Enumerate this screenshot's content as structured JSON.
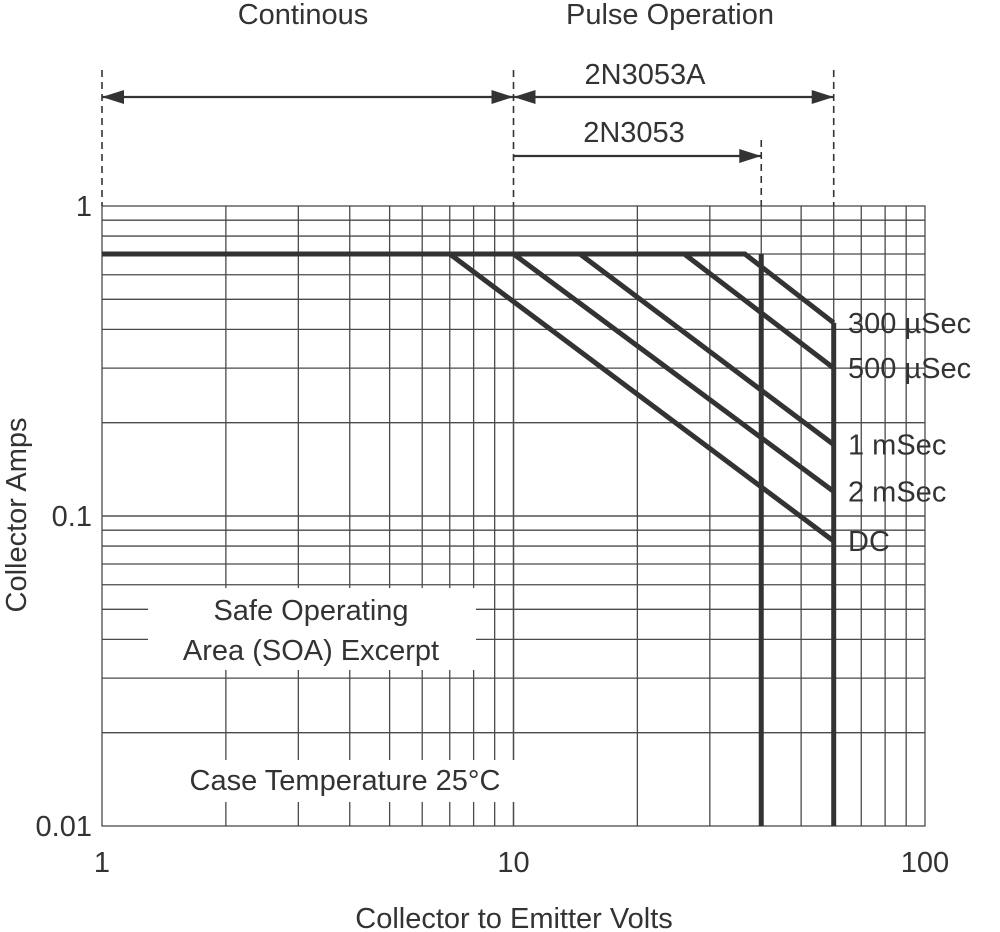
{
  "chart_data": {
    "type": "line",
    "xlabel": "Collector to Emitter Volts",
    "ylabel": "Collector Amps",
    "xscale": "log",
    "yscale": "log",
    "xlim": [
      1,
      100
    ],
    "ylim": [
      0.01,
      1
    ],
    "xticks": [
      1,
      10,
      100
    ],
    "xtick_labels": [
      "1",
      "10",
      "100"
    ],
    "yticks": [
      0.01,
      0.1,
      1
    ],
    "ytick_labels": [
      "0.01",
      "0.1",
      "1"
    ],
    "grid": true,
    "series": [
      {
        "name": "300 µSec",
        "x": [
          1,
          36.5,
          60
        ],
        "y": [
          0.7,
          0.7,
          0.42
        ]
      },
      {
        "name": "500 µSec",
        "x": [
          1,
          26,
          60
        ],
        "y": [
          0.7,
          0.7,
          0.3
        ]
      },
      {
        "name": "1 mSec",
        "x": [
          1,
          14.5,
          60
        ],
        "y": [
          0.7,
          0.7,
          0.17
        ]
      },
      {
        "name": "2 mSec",
        "x": [
          1,
          10,
          60
        ],
        "y": [
          0.7,
          0.7,
          0.12
        ]
      },
      {
        "name": "DC",
        "x": [
          1,
          7,
          60
        ],
        "y": [
          0.7,
          0.7,
          0.083
        ]
      }
    ],
    "voltage_limits": [
      {
        "x": 40,
        "y_top": 0.7,
        "y_bottom": 0.01
      },
      {
        "x": 60,
        "y_top": 0.42,
        "y_bottom": 0.01
      }
    ],
    "regions": {
      "continuous": {
        "label": "Continous",
        "x_from": 1,
        "x_to": 10
      },
      "pulse": {
        "label": "Pulse Operation",
        "x_from": 10,
        "x_to": 60
      }
    },
    "ranges": [
      {
        "label": "2N3053A",
        "x_from": 10,
        "x_to": 60
      },
      {
        "label": "2N3053",
        "x_from": 10,
        "x_to": 40
      }
    ],
    "annotations": [
      "Safe Operating",
      "Area (SOA) Excerpt",
      "Case Temperature 25°C"
    ]
  }
}
